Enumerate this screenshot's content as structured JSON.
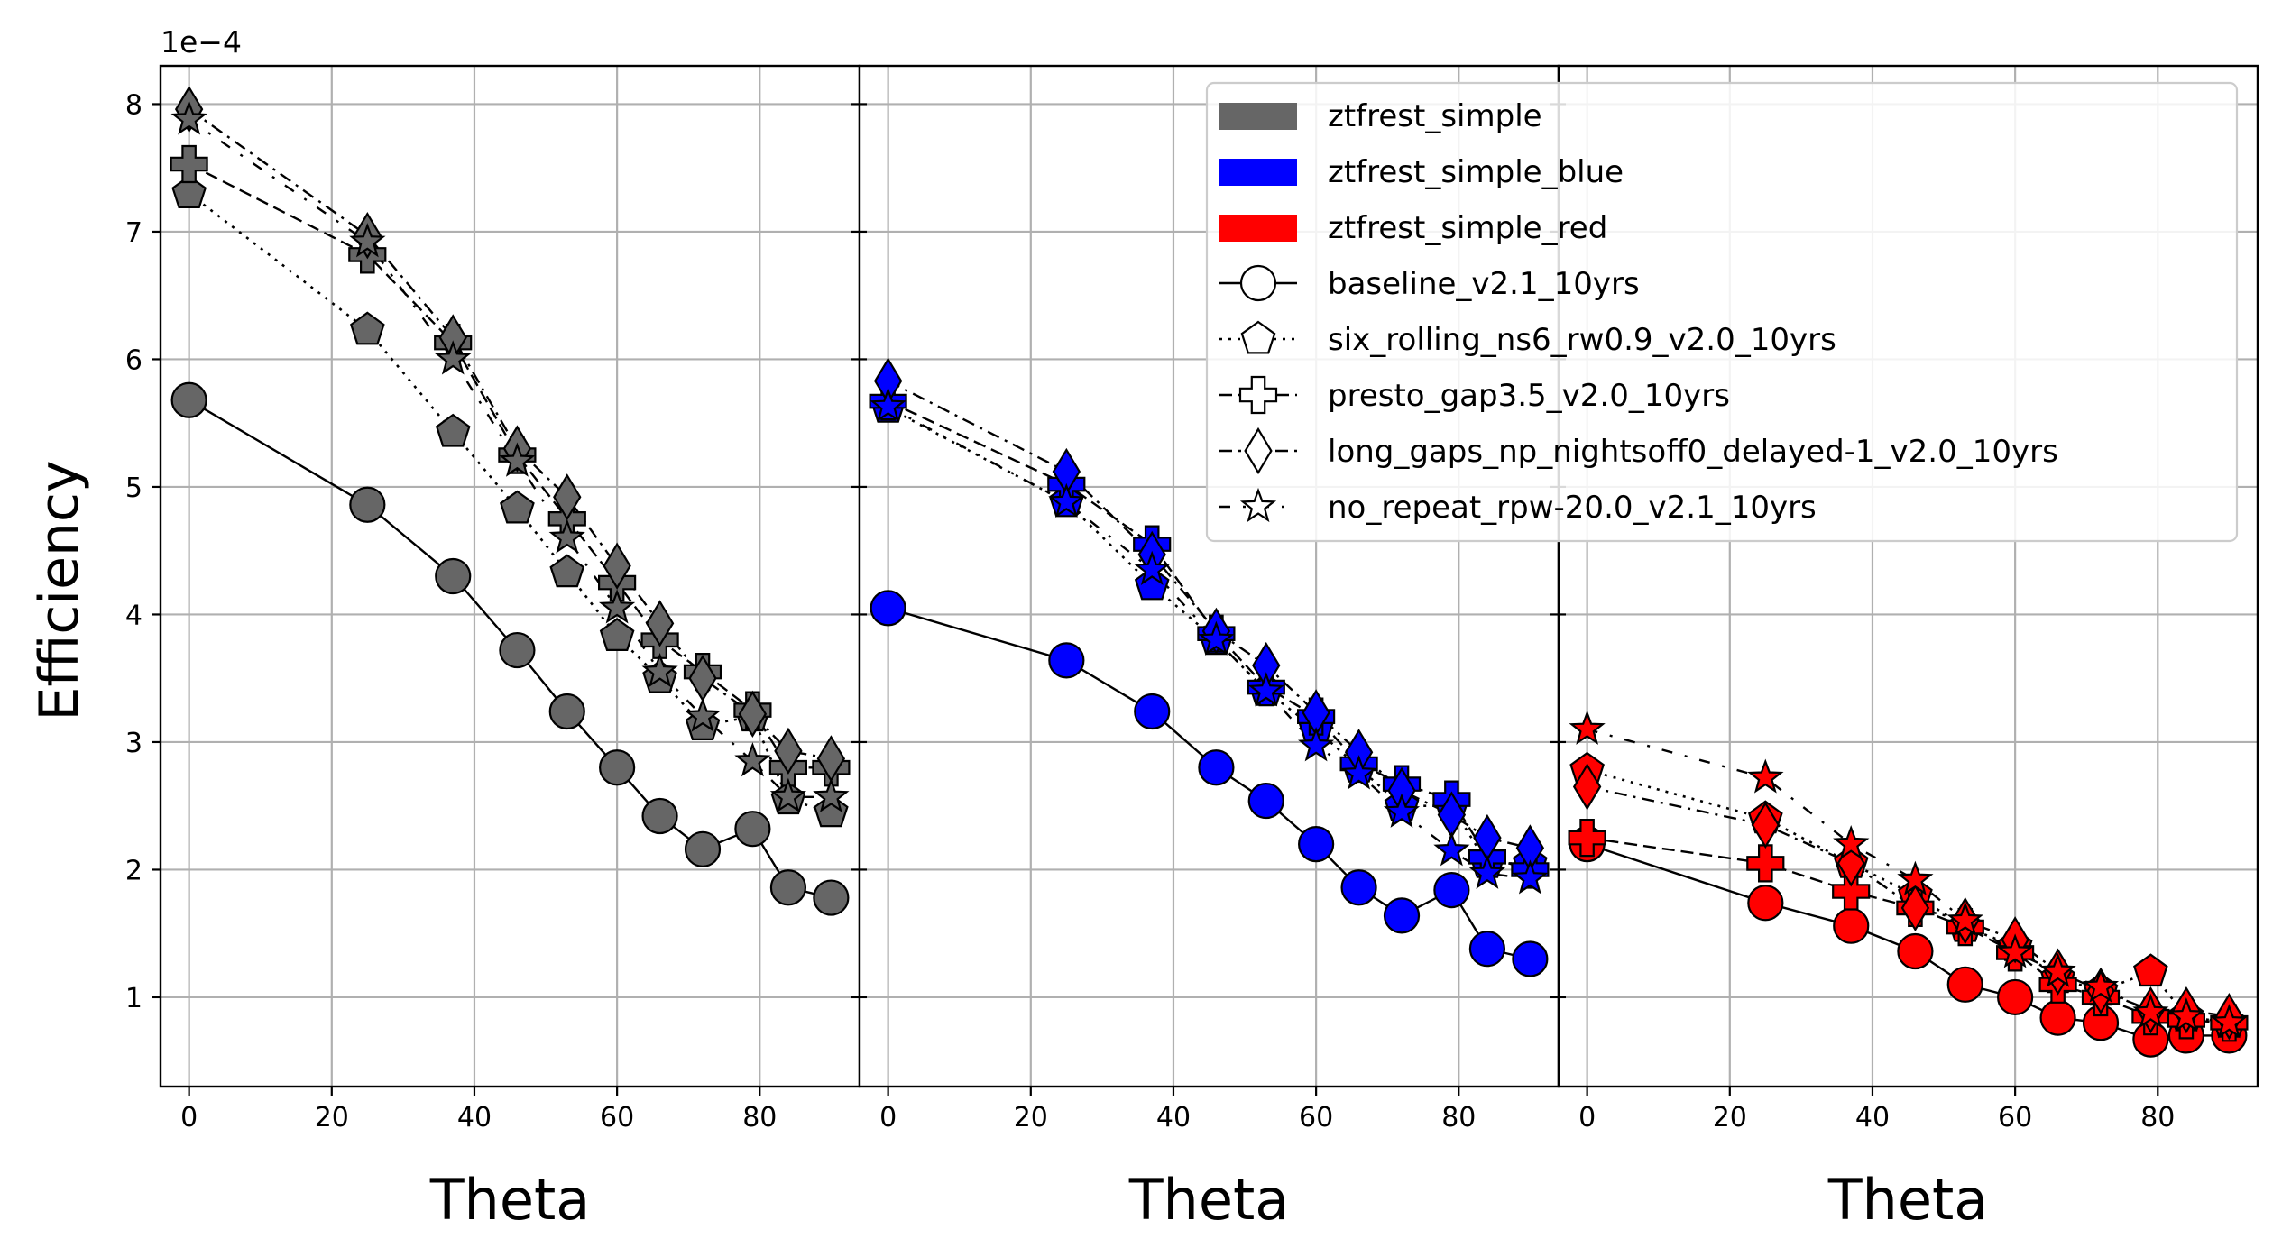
{
  "chart_data": {
    "type": "line",
    "ylabel": "Efficiency",
    "y_offset_label": "1e−4",
    "ylim": [
      0.3,
      8.3
    ],
    "xlim": [
      -4,
      94
    ],
    "xticks": [
      0,
      20,
      40,
      60,
      80
    ],
    "yticks": [
      1,
      2,
      3,
      4,
      5,
      6,
      7,
      8
    ],
    "grid": true,
    "legend_position": "upper-right of right two panels",
    "theta": [
      0,
      25,
      37,
      46,
      53,
      60,
      66,
      72,
      79,
      84,
      90
    ],
    "legend": {
      "filters": [
        {
          "name": "ztfrest_simple",
          "color": "#666666"
        },
        {
          "name": "ztfrest_simple_blue",
          "color": "#0000ff"
        },
        {
          "name": "ztfrest_simple_red",
          "color": "#ff0000"
        }
      ],
      "runs": [
        {
          "name": "baseline_v2.1_10yrs",
          "marker": "circle",
          "linestyle": "solid"
        },
        {
          "name": "six_rolling_ns6_rw0.9_v2.0_10yrs",
          "marker": "pentagon",
          "linestyle": "dotted"
        },
        {
          "name": "presto_gap3.5_v2.0_10yrs",
          "marker": "plus",
          "linestyle": "dashed"
        },
        {
          "name": "long_gaps_np_nightsoff0_delayed-1_v2.0_10yrs",
          "marker": "diamond",
          "linestyle": "dashdot"
        },
        {
          "name": "no_repeat_rpw-20.0_v2.1_10yrs",
          "marker": "star",
          "linestyle": "dashdot-sparse"
        }
      ]
    },
    "panels": [
      {
        "xlabel": "Theta",
        "filter": "ztfrest_simple",
        "color": "#666666",
        "series": [
          {
            "name": "baseline_v2.1_10yrs",
            "values": [
              5.68,
              4.86,
              4.3,
              3.72,
              3.24,
              2.8,
              2.42,
              2.16,
              2.32,
              1.86,
              1.78
            ]
          },
          {
            "name": "six_rolling_ns6_rw0.9_v2.0_10yrs",
            "values": [
              7.3,
              6.23,
              5.43,
              4.83,
              4.33,
              3.83,
              3.5,
              3.13,
              3.2,
              2.55,
              2.45
            ]
          },
          {
            "name": "presto_gap3.5_v2.0_10yrs",
            "values": [
              7.53,
              6.82,
              6.13,
              5.25,
              4.75,
              4.25,
              3.8,
              3.55,
              3.25,
              2.8,
              2.8
            ]
          },
          {
            "name": "long_gaps_np_nightsoff0_delayed-1_v2.0_10yrs",
            "values": [
              7.96,
              6.97,
              6.17,
              5.3,
              4.92,
              4.38,
              3.93,
              3.5,
              3.22,
              2.93,
              2.87
            ]
          },
          {
            "name": "no_repeat_rpw-20.0_v2.1_10yrs",
            "values": [
              7.88,
              6.92,
              6.0,
              5.2,
              4.6,
              4.05,
              3.55,
              3.2,
              2.85,
              2.57,
              2.57
            ]
          }
        ]
      },
      {
        "xlabel": "Theta",
        "filter": "ztfrest_simple_blue",
        "color": "#0000ff",
        "series": [
          {
            "name": "baseline_v2.1_10yrs",
            "values": [
              4.05,
              3.64,
              3.24,
              2.8,
              2.54,
              2.2,
              1.86,
              1.64,
              1.84,
              1.38,
              1.3
            ]
          },
          {
            "name": "six_rolling_ns6_rw0.9_v2.0_10yrs",
            "values": [
              5.62,
              4.88,
              4.23,
              3.8,
              3.4,
              3.1,
              2.8,
              2.5,
              2.5,
              2.05,
              2.05
            ]
          },
          {
            "name": "presto_gap3.5_v2.0_10yrs",
            "values": [
              5.67,
              5.02,
              4.55,
              3.85,
              3.43,
              3.2,
              2.83,
              2.67,
              2.55,
              2.1,
              2.0
            ]
          },
          {
            "name": "long_gaps_np_nightsoff0_delayed-1_v2.0_10yrs",
            "values": [
              5.83,
              5.12,
              4.47,
              3.87,
              3.6,
              3.23,
              2.92,
              2.62,
              2.43,
              2.25,
              2.17
            ]
          },
          {
            "name": "no_repeat_rpw-20.0_v2.1_10yrs",
            "values": [
              5.63,
              4.88,
              4.35,
              3.8,
              3.4,
              2.97,
              2.75,
              2.45,
              2.15,
              1.97,
              1.93
            ]
          }
        ]
      },
      {
        "xlabel": "Theta",
        "filter": "ztfrest_simple_red",
        "color": "#ff0000",
        "series": [
          {
            "name": "baseline_v2.1_10yrs",
            "values": [
              2.2,
              1.74,
              1.56,
              1.36,
              1.1,
              1.0,
              0.84,
              0.8,
              0.67,
              0.7,
              0.7
            ]
          },
          {
            "name": "six_rolling_ns6_rw0.9_v2.0_10yrs",
            "values": [
              2.78,
              2.4,
              2.05,
              1.8,
              1.55,
              1.4,
              1.15,
              1.05,
              1.2,
              0.85,
              0.8
            ]
          },
          {
            "name": "presto_gap3.5_v2.0_10yrs",
            "values": [
              2.25,
              2.05,
              1.83,
              1.7,
              1.55,
              1.35,
              1.1,
              1.0,
              0.85,
              0.82,
              0.8
            ]
          },
          {
            "name": "long_gaps_np_nightsoff0_delayed-1_v2.0_10yrs",
            "values": [
              2.65,
              2.35,
              2.05,
              1.7,
              1.6,
              1.45,
              1.2,
              1.05,
              0.9,
              0.9,
              0.85
            ]
          },
          {
            "name": "no_repeat_rpw-20.0_v2.1_10yrs",
            "values": [
              3.1,
              2.72,
              2.2,
              1.92,
              1.6,
              1.35,
              1.2,
              1.08,
              0.88,
              0.85,
              0.8
            ]
          }
        ]
      }
    ]
  }
}
